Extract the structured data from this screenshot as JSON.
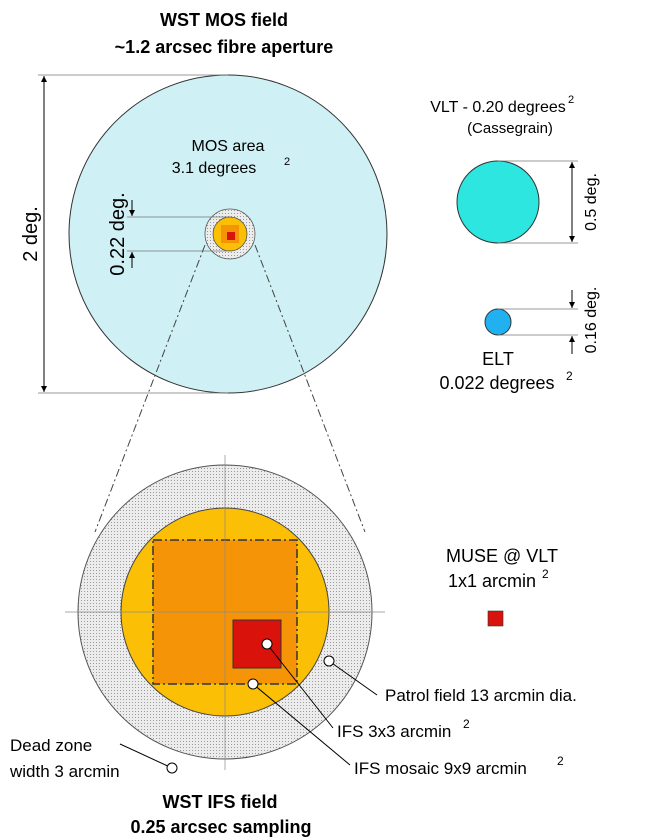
{
  "top_title": {
    "line1": "WST MOS field",
    "line2": "~1.2 arcsec fibre aperture"
  },
  "mos": {
    "area_label": "MOS area",
    "area_value": "3.1 degrees",
    "area_sup": "2",
    "diameter_label": "2 deg.",
    "inner_label": "0.22 deg.",
    "field_color": "#cff0f4"
  },
  "vlt": {
    "label": "VLT - 0.20 degrees",
    "label_sup": "2",
    "sublabel": "(Cassegrain)",
    "size_label": "0.5 deg.",
    "color": "#2ee6e0"
  },
  "elt": {
    "label": "ELT",
    "value": "0.022 degrees",
    "value_sup": "2",
    "size_label": "0.16 deg.",
    "color": "#21b0f0"
  },
  "ifs_field": {
    "patrol_color": "#fbbf05",
    "mosaic_color": "#f69407",
    "ifs_color": "#d9120c",
    "dead_zone_color": "#e4e4e4"
  },
  "muse": {
    "label": "MUSE @ VLT",
    "size": "1x1 arcmin",
    "size_sup": "2",
    "color": "#d9120c"
  },
  "callouts": {
    "patrol": "Patrol field 13 arcmin dia.",
    "ifs": "IFS 3x3 arcmin",
    "ifs_sup": "2",
    "mosaic": "IFS mosaic 9x9 arcmin",
    "mosaic_sup": "2",
    "dead_zone_line1": "Dead zone",
    "dead_zone_line2": "width 3 arcmin"
  },
  "bottom_title": {
    "line1": "WST IFS field",
    "line2": "0.25 arcsec sampling"
  }
}
